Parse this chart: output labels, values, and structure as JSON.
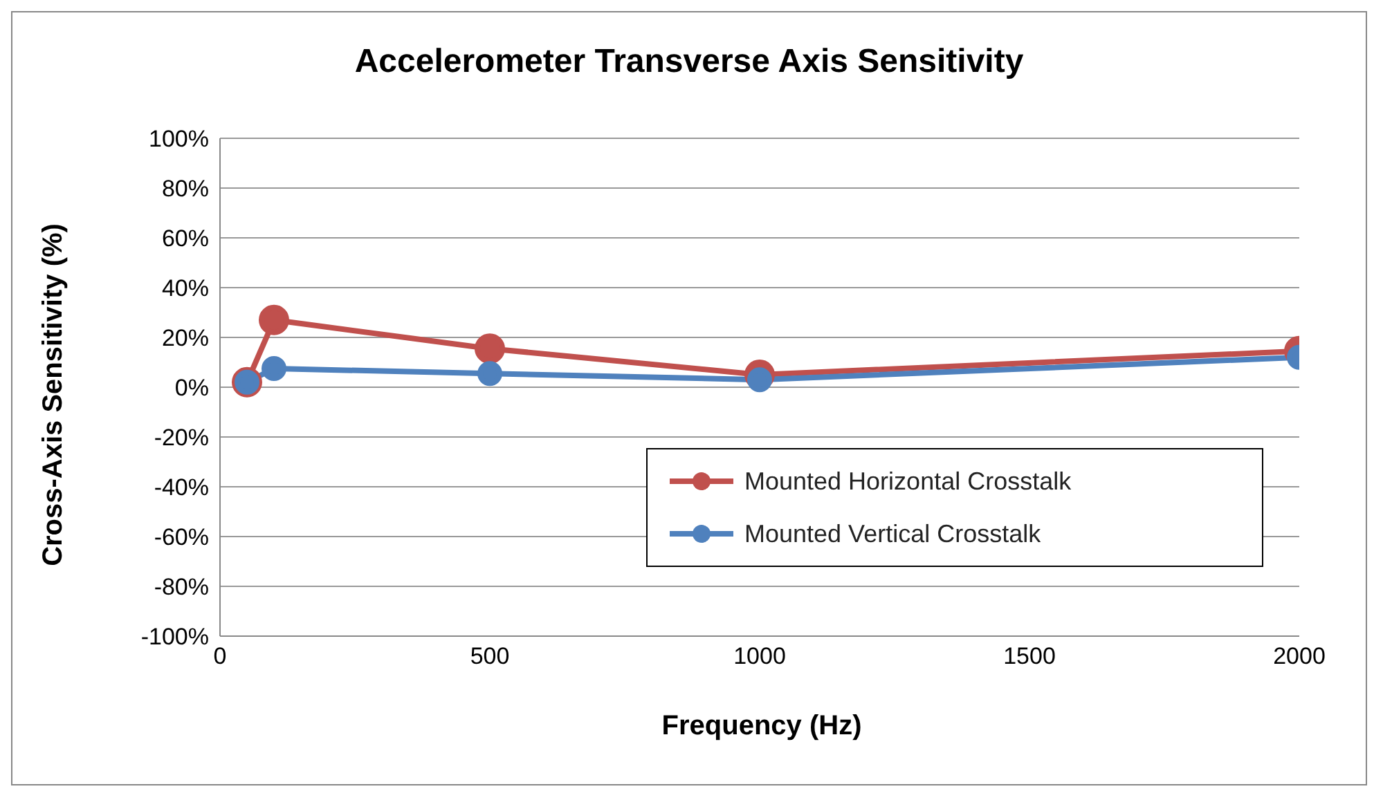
{
  "chart_data": {
    "type": "line",
    "title": "Accelerometer Transverse Axis Sensitivity",
    "xlabel": "Frequency (Hz)",
    "ylabel": "Cross-Axis Sensitivity (%)",
    "x": [
      50,
      100,
      500,
      1000,
      2000
    ],
    "series": [
      {
        "name": "Mounted Horizontal Crosstalk",
        "color": "#c0504d",
        "values": [
          2,
          27,
          15.5,
          5,
          14.5
        ]
      },
      {
        "name": "Mounted Vertical Crosstalk",
        "color": "#4f81bd",
        "values": [
          2,
          7.5,
          5.5,
          3,
          12
        ]
      }
    ],
    "xlim": [
      0,
      2000
    ],
    "xticks": [
      0,
      500,
      1000,
      1500,
      2000
    ],
    "ylim": [
      -100,
      100
    ],
    "yticks": [
      {
        "value": -100,
        "label": "-100%"
      },
      {
        "value": -80,
        "label": "-80%"
      },
      {
        "value": -60,
        "label": "-60%"
      },
      {
        "value": -40,
        "label": "-40%"
      },
      {
        "value": -20,
        "label": "-20%"
      },
      {
        "value": 0,
        "label": "0%"
      },
      {
        "value": 20,
        "label": "20%"
      },
      {
        "value": 40,
        "label": "40%"
      },
      {
        "value": 60,
        "label": "60%"
      },
      {
        "value": 80,
        "label": "80%"
      },
      {
        "value": 100,
        "label": "100%"
      }
    ],
    "grid": "y",
    "legend": "bottom right",
    "marker": "circle",
    "line_style": "solid"
  }
}
